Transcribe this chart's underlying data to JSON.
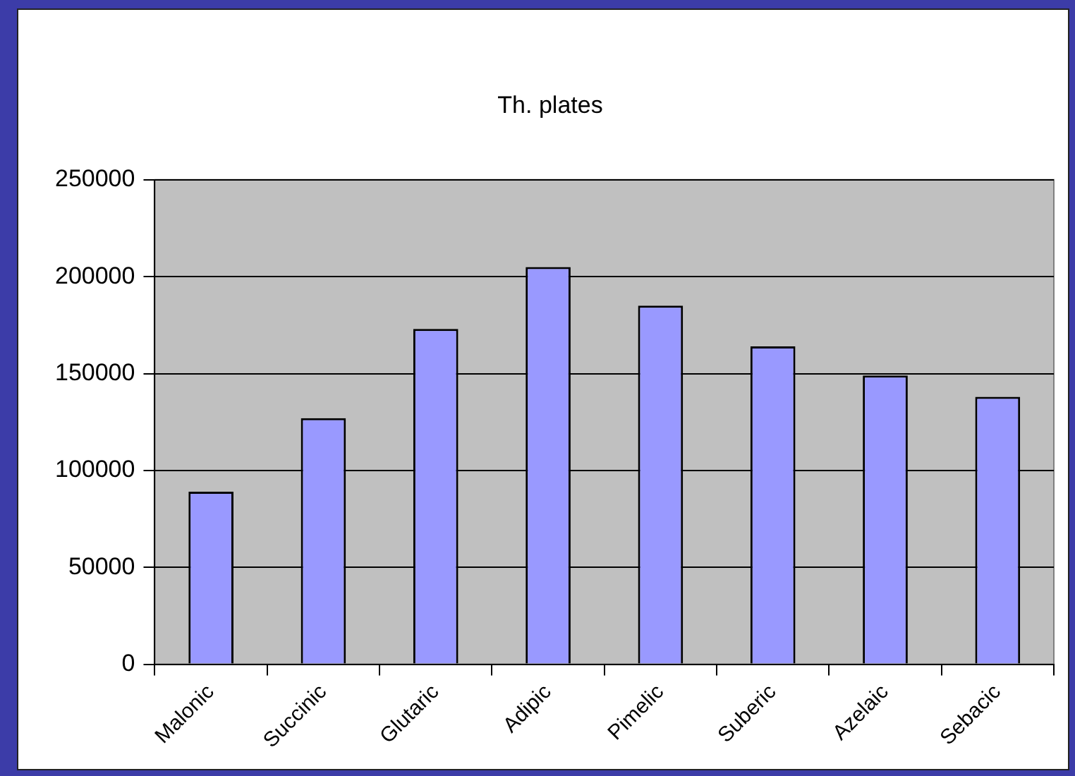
{
  "chart_data": {
    "type": "bar",
    "title": "Th. plates",
    "categories": [
      "Malonic",
      "Succinic",
      "Glutaric",
      "Adipic",
      "Pimelic",
      "Suberic",
      "Azelaic",
      "Sebacic"
    ],
    "values": [
      89000,
      127000,
      173000,
      205000,
      185000,
      164000,
      149000,
      138000
    ],
    "color": "#9999ff",
    "ylim": [
      0,
      250000
    ],
    "yticks": [
      0,
      50000,
      100000,
      150000,
      200000,
      250000
    ],
    "grid": "y",
    "legend": false
  }
}
